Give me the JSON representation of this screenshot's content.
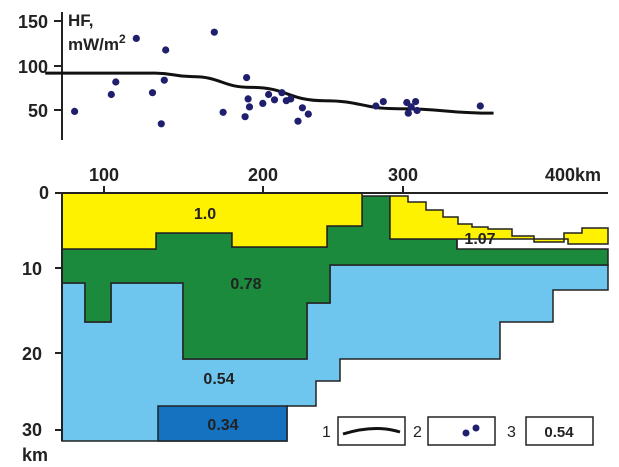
{
  "heat_flow_panel": {
    "title_line1": "HF,",
    "title_line2": "mW/m",
    "title_sup": "2",
    "y_ticks": [
      "150",
      "100",
      "50"
    ]
  },
  "distance_axis": {
    "ticks": [
      "100",
      "200",
      "300",
      "400km"
    ]
  },
  "depth_axis": {
    "ticks": [
      "0",
      "10",
      "20",
      "30"
    ],
    "unit": "km"
  },
  "layers": {
    "upper_yellow": "1.0",
    "upper_yellow_right": "1.07",
    "middle_green": "0.78",
    "lower_lightblue": "0.54",
    "bottom_darkblue": "0.34"
  },
  "legend": {
    "item1_number": "1",
    "item2_number": "2",
    "item3_number": "3",
    "item3_value": "0.54"
  },
  "colors": {
    "yellow": "#fff200",
    "green": "#1c8a3c",
    "light_blue": "#6ec6ee",
    "dark_blue": "#1572c0",
    "points": "#1f1f6e"
  },
  "chart_data": {
    "type": "scatter",
    "xlim": [
      60,
      400
    ],
    "ylim": [
      30,
      160
    ],
    "y_ticks": [
      150,
      100,
      50
    ],
    "points": [
      [
        80,
        49
      ],
      [
        105,
        68
      ],
      [
        108,
        82
      ],
      [
        122,
        131
      ],
      [
        133,
        70
      ],
      [
        139,
        35
      ],
      [
        141,
        84
      ],
      [
        142,
        118
      ],
      [
        175,
        138
      ],
      [
        181,
        48
      ],
      [
        196,
        43
      ],
      [
        197,
        87
      ],
      [
        198,
        63
      ],
      [
        199,
        54
      ],
      [
        208,
        58
      ],
      [
        212,
        68
      ],
      [
        216,
        62
      ],
      [
        221,
        70
      ],
      [
        224,
        61
      ],
      [
        227,
        63
      ],
      [
        232,
        38
      ],
      [
        235,
        53
      ],
      [
        239,
        46
      ],
      [
        285,
        55
      ],
      [
        290,
        60
      ],
      [
        306,
        59
      ],
      [
        307,
        47
      ],
      [
        309,
        54
      ],
      [
        312,
        60
      ],
      [
        313,
        50
      ],
      [
        356,
        55
      ]
    ],
    "trend": [
      [
        60,
        92
      ],
      [
        135,
        92
      ],
      [
        160,
        88
      ],
      [
        200,
        76
      ],
      [
        250,
        61
      ],
      [
        300,
        52
      ],
      [
        365,
        47
      ]
    ]
  }
}
